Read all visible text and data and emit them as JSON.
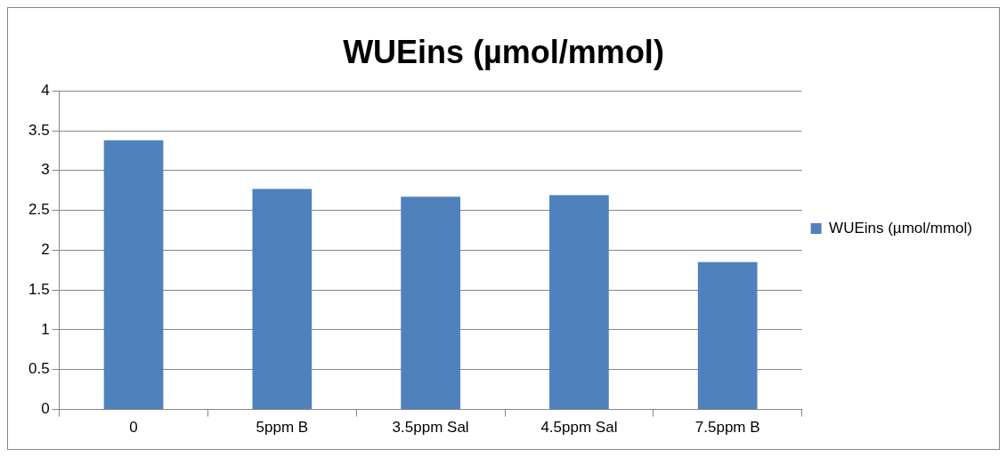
{
  "chart_data": {
    "type": "bar",
    "title": "WUEins (µmol/mmol)",
    "categories": [
      "0",
      "5ppm B",
      "3.5ppm Sal",
      "4.5ppm Sal",
      "7.5ppm B"
    ],
    "series": [
      {
        "name": "WUEins (µmol/mmol)",
        "color": "#4f81bd",
        "values": [
          3.38,
          2.77,
          2.67,
          2.69,
          1.85
        ]
      }
    ],
    "ylim": [
      0,
      4
    ],
    "yticks": [
      0,
      0.5,
      1,
      1.5,
      2,
      2.5,
      3,
      3.5,
      4
    ],
    "grid": "y",
    "legend": "right"
  }
}
